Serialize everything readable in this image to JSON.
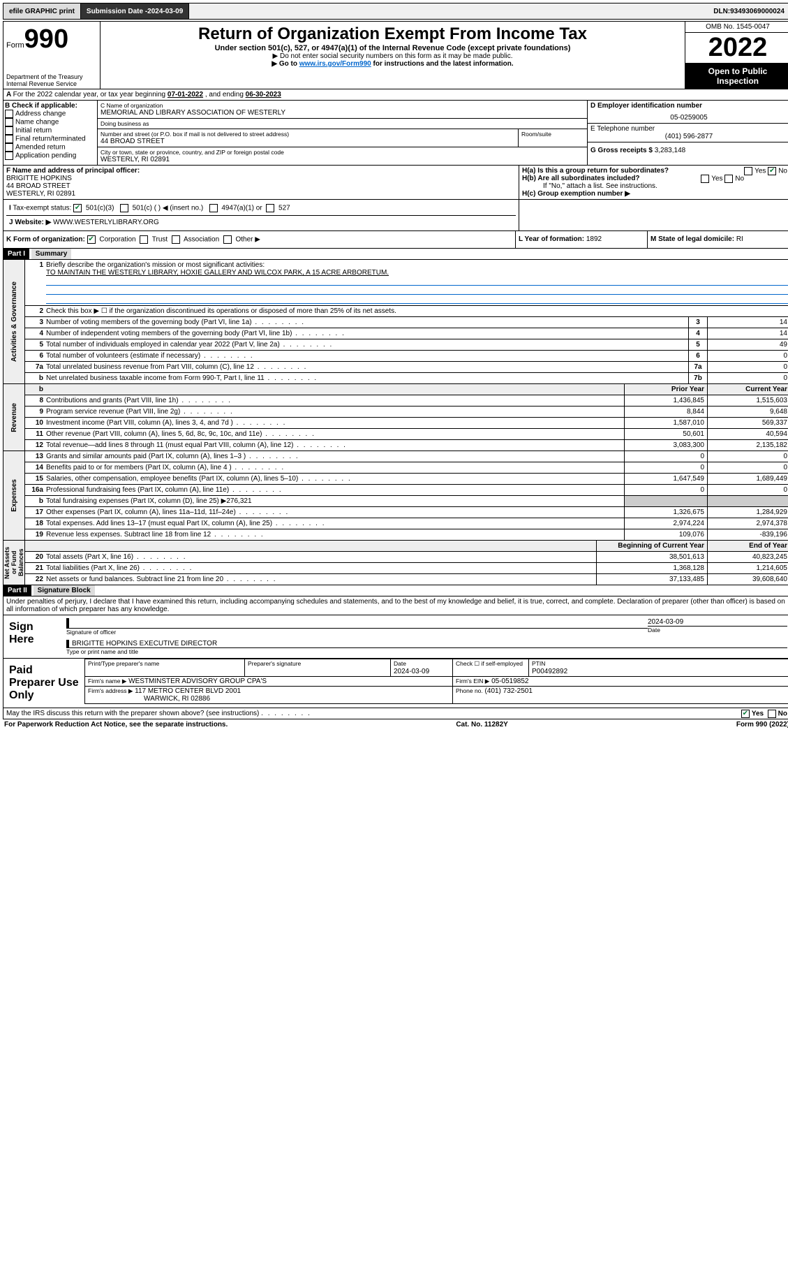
{
  "topbar": {
    "efile": "efile GRAPHIC print",
    "submission_label": "Submission Date - ",
    "submission_date": "2024-03-09",
    "dln_label": "DLN: ",
    "dln": "93493069000024"
  },
  "header": {
    "form_prefix": "Form",
    "form_no": "990",
    "dept": "Department of the Treasury",
    "irs": "Internal Revenue Service",
    "title": "Return of Organization Exempt From Income Tax",
    "sub1": "Under section 501(c), 527, or 4947(a)(1) of the Internal Revenue Code (except private foundations)",
    "sub2": "▶ Do not enter social security numbers on this form as it may be made public.",
    "sub3_pre": "▶ Go to ",
    "sub3_link": "www.irs.gov/Form990",
    "sub3_post": " for instructions and the latest information.",
    "omb": "OMB No. 1545-0047",
    "year": "2022",
    "open": "Open to Public Inspection"
  },
  "lineA": {
    "text_pre": "For the 2022 calendar year, or tax year beginning ",
    "begin": "07-01-2022",
    "mid": " , and ending ",
    "end": "06-30-2023"
  },
  "boxB": {
    "hdr": "B Check if applicable:",
    "opts": [
      "Address change",
      "Name change",
      "Initial return",
      "Final return/terminated",
      "Amended return",
      "Application pending"
    ]
  },
  "boxC": {
    "name_label": "C Name of organization",
    "name": "MEMORIAL AND LIBRARY ASSOCIATION OF WESTERLY",
    "dba_label": "Doing business as",
    "dba": "",
    "street_label": "Number and street (or P.O. box if mail is not delivered to street address)",
    "room_label": "Room/suite",
    "street": "44 BROAD STREET",
    "city_label": "City or town, state or province, country, and ZIP or foreign postal code",
    "city": "WESTERLY, RI  02891"
  },
  "boxD": {
    "label": "D Employer identification number",
    "val": "05-0259005"
  },
  "boxE": {
    "label": "E Telephone number",
    "val": "(401) 596-2877"
  },
  "boxG": {
    "label": "G Gross receipts $",
    "val": "3,283,148"
  },
  "boxF": {
    "label": "F Name and address of principal officer:",
    "name": "BRIGITTE HOPKINS",
    "street": "44 BROAD STREET",
    "city": "WESTERLY, RI  02891"
  },
  "boxH": {
    "ha": "H(a)  Is this a group return for subordinates?",
    "hb": "H(b)  Are all subordinates included?",
    "hb_note": "If \"No,\" attach a list. See instructions.",
    "hc": "H(c)  Group exemption number ▶",
    "yes": "Yes",
    "no": "No"
  },
  "boxI": {
    "label": "Tax-exempt status:",
    "o1": "501(c)(3)",
    "o2": "501(c) (  ) ◀ (insert no.)",
    "o3": "4947(a)(1) or",
    "o4": "527"
  },
  "boxJ": {
    "label": "Website: ▶",
    "val": "WWW.WESTERLYLIBRARY.ORG"
  },
  "boxK": {
    "label": "K Form of organization:",
    "o1": "Corporation",
    "o2": "Trust",
    "o3": "Association",
    "o4": "Other ▶"
  },
  "boxL": {
    "label": "L Year of formation:",
    "val": "1892"
  },
  "boxM": {
    "label": "M State of legal domicile:",
    "val": "RI"
  },
  "partI": {
    "hdr": "Part I",
    "title": "Summary"
  },
  "summary": {
    "l1_label": "Briefly describe the organization's mission or most significant activities:",
    "l1_text": "TO MAINTAIN THE WESTERLY LIBRARY, HOXIE GALLERY AND WILCOX PARK, A 15 ACRE ARBORETUM.",
    "l2": "Check this box ▶ ☐ if the organization discontinued its operations or disposed of more than 25% of its net assets.",
    "activities_label": "Activities & Governance",
    "revenue_label": "Revenue",
    "expenses_label": "Expenses",
    "netassets_label": "Net Assets or Fund Balances",
    "col_prior": "Prior Year",
    "col_curr": "Current Year",
    "col_begin": "Beginning of Current Year",
    "col_end": "End of Year",
    "rows_gov": [
      {
        "n": "3",
        "d": "Number of voting members of the governing body (Part VI, line 1a)",
        "b": "3",
        "v": "14"
      },
      {
        "n": "4",
        "d": "Number of independent voting members of the governing body (Part VI, line 1b)",
        "b": "4",
        "v": "14"
      },
      {
        "n": "5",
        "d": "Total number of individuals employed in calendar year 2022 (Part V, line 2a)",
        "b": "5",
        "v": "49"
      },
      {
        "n": "6",
        "d": "Total number of volunteers (estimate if necessary)",
        "b": "6",
        "v": "0"
      },
      {
        "n": "7a",
        "d": "Total unrelated business revenue from Part VIII, column (C), line 12",
        "b": "7a",
        "v": "0"
      },
      {
        "n": "b",
        "d": "Net unrelated business taxable income from Form 990-T, Part I, line 11",
        "b": "7b",
        "v": "0"
      }
    ],
    "rows_rev": [
      {
        "n": "8",
        "d": "Contributions and grants (Part VIII, line 1h)",
        "p": "1,436,845",
        "c": "1,515,603"
      },
      {
        "n": "9",
        "d": "Program service revenue (Part VIII, line 2g)",
        "p": "8,844",
        "c": "9,648"
      },
      {
        "n": "10",
        "d": "Investment income (Part VIII, column (A), lines 3, 4, and 7d )",
        "p": "1,587,010",
        "c": "569,337"
      },
      {
        "n": "11",
        "d": "Other revenue (Part VIII, column (A), lines 5, 6d, 8c, 9c, 10c, and 11e)",
        "p": "50,601",
        "c": "40,594"
      },
      {
        "n": "12",
        "d": "Total revenue—add lines 8 through 11 (must equal Part VIII, column (A), line 12)",
        "p": "3,083,300",
        "c": "2,135,182"
      }
    ],
    "rows_exp": [
      {
        "n": "13",
        "d": "Grants and similar amounts paid (Part IX, column (A), lines 1–3 )",
        "p": "0",
        "c": "0"
      },
      {
        "n": "14",
        "d": "Benefits paid to or for members (Part IX, column (A), line 4 )",
        "p": "0",
        "c": "0"
      },
      {
        "n": "15",
        "d": "Salaries, other compensation, employee benefits (Part IX, column (A), lines 5–10)",
        "p": "1,647,549",
        "c": "1,689,449"
      },
      {
        "n": "16a",
        "d": "Professional fundraising fees (Part IX, column (A), line 11e)",
        "p": "0",
        "c": "0"
      },
      {
        "n": "b",
        "d": "Total fundraising expenses (Part IX, column (D), line 25) ▶276,321",
        "p": "",
        "c": ""
      },
      {
        "n": "17",
        "d": "Other expenses (Part IX, column (A), lines 11a–11d, 11f–24e)",
        "p": "1,326,675",
        "c": "1,284,929"
      },
      {
        "n": "18",
        "d": "Total expenses. Add lines 13–17 (must equal Part IX, column (A), line 25)",
        "p": "2,974,224",
        "c": "2,974,378"
      },
      {
        "n": "19",
        "d": "Revenue less expenses. Subtract line 18 from line 12",
        "p": "109,076",
        "c": "-839,196"
      }
    ],
    "rows_net": [
      {
        "n": "20",
        "d": "Total assets (Part X, line 16)",
        "p": "38,501,613",
        "c": "40,823,245"
      },
      {
        "n": "21",
        "d": "Total liabilities (Part X, line 26)",
        "p": "1,368,128",
        "c": "1,214,605"
      },
      {
        "n": "22",
        "d": "Net assets or fund balances. Subtract line 21 from line 20",
        "p": "37,133,485",
        "c": "39,608,640"
      }
    ]
  },
  "partII": {
    "hdr": "Part II",
    "title": "Signature Block"
  },
  "penalties": "Under penalties of perjury, I declare that I have examined this return, including accompanying schedules and statements, and to the best of my knowledge and belief, it is true, correct, and complete. Declaration of preparer (other than officer) is based on all information of which preparer has any knowledge.",
  "sign": {
    "here": "Sign Here",
    "sig_label": "Signature of officer",
    "date_label": "Date",
    "date": "2024-03-09",
    "name": "BRIGITTE HOPKINS  EXECUTIVE DIRECTOR",
    "name_label": "Type or print name and title"
  },
  "paid": {
    "hdr": "Paid Preparer Use Only",
    "col1": "Print/Type preparer's name",
    "col2": "Preparer's signature",
    "col3": "Date",
    "col4": "Check ☐ if self-employed",
    "col5": "PTIN",
    "date": "2024-03-09",
    "ptin": "P00492892",
    "firm_label": "Firm's name  ▶",
    "firm": "WESTMINSTER ADVISORY GROUP CPA'S",
    "addr_label": "Firm's address ▶",
    "addr1": "117 METRO CENTER BLVD 2001",
    "addr2": "WARWICK, RI  02886",
    "ein_label": "Firm's EIN ▶",
    "ein": "05-0519852",
    "phone_label": "Phone no.",
    "phone": "(401) 732-2501"
  },
  "discuss": {
    "q": "May the IRS discuss this return with the preparer shown above? (see instructions)",
    "yes": "Yes",
    "no": "No"
  },
  "footer": {
    "l": "For Paperwork Reduction Act Notice, see the separate instructions.",
    "m": "Cat. No. 11282Y",
    "r": "Form 990 (2022)"
  }
}
